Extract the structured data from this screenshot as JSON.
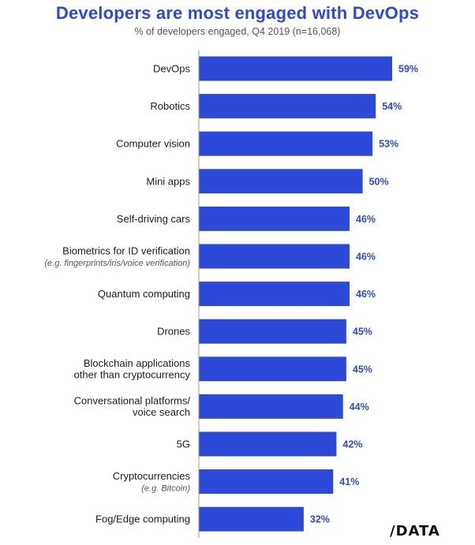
{
  "chart_data": {
    "type": "bar",
    "orientation": "horizontal",
    "title": "Developers are most engaged with DevOps",
    "subtitle": "% of developers engaged, Q4 2019 (n=16,068)",
    "xlim": [
      0,
      59
    ],
    "value_suffix": "%",
    "categories": [
      {
        "main": [
          "DevOps"
        ],
        "note": "",
        "value": 59,
        "label": "59%"
      },
      {
        "main": [
          "Robotics"
        ],
        "note": "",
        "value": 54,
        "label": "54%"
      },
      {
        "main": [
          "Computer vision"
        ],
        "note": "",
        "value": 53,
        "label": "53%"
      },
      {
        "main": [
          "Mini apps"
        ],
        "note": "",
        "value": 50,
        "label": "50%"
      },
      {
        "main": [
          "Self-driving cars"
        ],
        "note": "",
        "value": 46,
        "label": "46%"
      },
      {
        "main": [
          "Biometrics for ID verification"
        ],
        "note": "(e.g. fingerprints/iris/voice verification)",
        "value": 46,
        "label": "46%"
      },
      {
        "main": [
          "Quantum computing"
        ],
        "note": "",
        "value": 46,
        "label": "46%"
      },
      {
        "main": [
          "Drones"
        ],
        "note": "",
        "value": 45,
        "label": "45%"
      },
      {
        "main": [
          "Blockchain applications",
          "other than cryptocurrency"
        ],
        "note": "",
        "value": 45,
        "label": "45%"
      },
      {
        "main": [
          "Conversational platforms/",
          "voice search"
        ],
        "note": "",
        "value": 44,
        "label": "44%"
      },
      {
        "main": [
          "5G"
        ],
        "note": "",
        "value": 42,
        "label": "42%"
      },
      {
        "main": [
          "Cryptocurrencies"
        ],
        "note": "(e.g. Bitcoin)",
        "value": 41,
        "label": "41%"
      },
      {
        "main": [
          "Fog/Edge computing"
        ],
        "note": "",
        "value": 32,
        "label": "32%"
      }
    ]
  },
  "colors": {
    "bar": "#2d49d8",
    "axis": "#999999"
  },
  "brand": {
    "logo_text": "/DATA"
  }
}
